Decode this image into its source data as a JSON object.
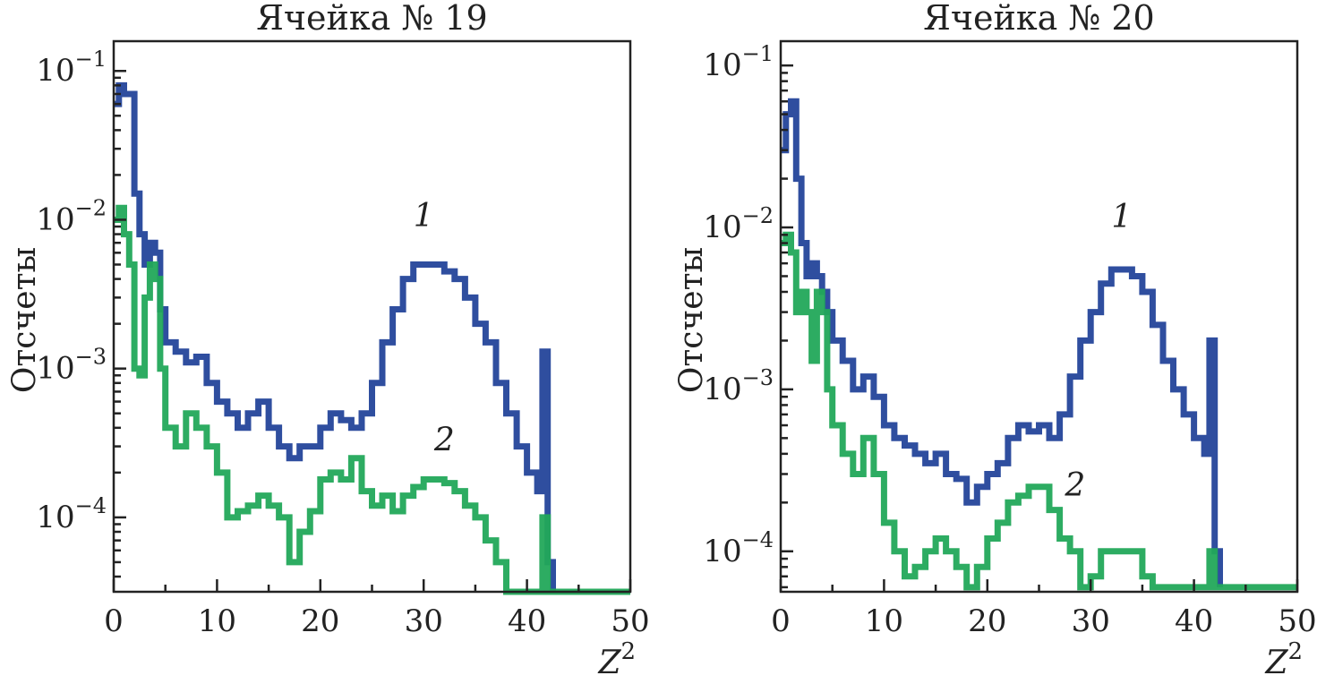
{
  "chart_data": [
    {
      "type": "line",
      "title": "Ячейка № 19",
      "xlabel_base": "Z",
      "xlabel_sup": "2",
      "ylabel": "Отсчеты",
      "xlim": [
        0,
        50
      ],
      "ylim_log10": [
        -4.5,
        -0.8
      ],
      "x_ticks": [
        "0",
        "10",
        "20",
        "30",
        "40",
        "50"
      ],
      "y_ticks": [
        {
          "base": "10",
          "exp": "−1",
          "log": -1
        },
        {
          "base": "10",
          "exp": "−2",
          "log": -2
        },
        {
          "base": "10",
          "exp": "−3",
          "log": -3
        },
        {
          "base": "10",
          "exp": "−4",
          "log": -4
        }
      ],
      "series": [
        {
          "name": "1",
          "color": "#24449a",
          "points": [
            [
              0,
              0.06
            ],
            [
              0.5,
              0.08
            ],
            [
              1,
              0.07
            ],
            [
              2,
              0.015
            ],
            [
              2.5,
              0.008
            ],
            [
              3,
              0.005
            ],
            [
              3.5,
              0.007
            ],
            [
              4,
              0.006
            ],
            [
              4.5,
              0.0025
            ],
            [
              5,
              0.0015
            ],
            [
              6,
              0.0013
            ],
            [
              7,
              0.0011
            ],
            [
              8,
              0.0012
            ],
            [
              9,
              0.0008
            ],
            [
              10,
              0.0006
            ],
            [
              11,
              0.0005
            ],
            [
              12,
              0.0004
            ],
            [
              13,
              0.0005
            ],
            [
              14,
              0.0006
            ],
            [
              15,
              0.0004
            ],
            [
              16,
              0.0003
            ],
            [
              17,
              0.00025
            ],
            [
              18,
              0.0003
            ],
            [
              19,
              0.0003
            ],
            [
              20,
              0.0004
            ],
            [
              21,
              0.0005
            ],
            [
              22,
              0.00045
            ],
            [
              23,
              0.0004
            ],
            [
              24,
              0.0005
            ],
            [
              25,
              0.0008
            ],
            [
              26,
              0.0015
            ],
            [
              27,
              0.0025
            ],
            [
              28,
              0.004
            ],
            [
              29,
              0.005
            ],
            [
              30,
              0.005
            ],
            [
              31,
              0.005
            ],
            [
              32,
              0.0045
            ],
            [
              33,
              0.004
            ],
            [
              34,
              0.003
            ],
            [
              35,
              0.002
            ],
            [
              36,
              0.0015
            ],
            [
              37,
              0.0008
            ],
            [
              38,
              0.0005
            ],
            [
              39,
              0.0003
            ],
            [
              40,
              0.0002
            ],
            [
              41,
              0.00015
            ],
            [
              41.5,
              0.0013
            ],
            [
              42,
              5e-05
            ],
            [
              42.5,
              3e-05
            ]
          ]
        },
        {
          "name": "2",
          "color": "#22a85a",
          "points": [
            [
              0,
              0.01
            ],
            [
              0.5,
              0.012
            ],
            [
              1,
              0.008
            ],
            [
              1.5,
              0.005
            ],
            [
              2,
              0.001
            ],
            [
              2.5,
              0.0009
            ],
            [
              3,
              0.003
            ],
            [
              3.5,
              0.005
            ],
            [
              4,
              0.004
            ],
            [
              4.5,
              0.001
            ],
            [
              5,
              0.0004
            ],
            [
              6,
              0.0003
            ],
            [
              7,
              0.0005
            ],
            [
              8,
              0.0004
            ],
            [
              9,
              0.0003
            ],
            [
              10,
              0.0002
            ],
            [
              11,
              0.0001
            ],
            [
              12,
              0.00011
            ],
            [
              13,
              0.00012
            ],
            [
              14,
              0.00014
            ],
            [
              15,
              0.00012
            ],
            [
              16,
              0.0001
            ],
            [
              17,
              5e-05
            ],
            [
              18,
              8e-05
            ],
            [
              19,
              0.00011
            ],
            [
              20,
              0.00018
            ],
            [
              21,
              0.0002
            ],
            [
              22,
              0.00018
            ],
            [
              23,
              0.00025
            ],
            [
              24,
              0.00015
            ],
            [
              25,
              0.00012
            ],
            [
              26,
              0.00014
            ],
            [
              27,
              0.00011
            ],
            [
              28,
              0.00014
            ],
            [
              29,
              0.00016
            ],
            [
              30,
              0.00018
            ],
            [
              31,
              0.00018
            ],
            [
              32,
              0.00017
            ],
            [
              33,
              0.00015
            ],
            [
              34,
              0.00012
            ],
            [
              35,
              0.0001
            ],
            [
              36,
              7e-05
            ],
            [
              37,
              5e-05
            ],
            [
              38,
              3e-05
            ],
            [
              41.5,
              0.0001
            ],
            [
              42,
              3e-05
            ],
            [
              50,
              3e-05
            ]
          ]
        }
      ],
      "annotations": [
        {
          "text": "1",
          "x": 30,
          "y": 0.009
        },
        {
          "text": "2",
          "x": 32,
          "y": 0.00028
        }
      ]
    },
    {
      "type": "line",
      "title": "Ячейка № 20",
      "xlabel_base": "Z",
      "xlabel_sup": "2",
      "ylabel": "Отсчеты",
      "xlim": [
        0,
        50
      ],
      "ylim_log10": [
        -4.25,
        -0.85
      ],
      "x_ticks": [
        "0",
        "10",
        "20",
        "30",
        "40",
        "50"
      ],
      "y_ticks": [
        {
          "base": "10",
          "exp": "−1",
          "log": -1
        },
        {
          "base": "10",
          "exp": "−2",
          "log": -2
        },
        {
          "base": "10",
          "exp": "−3",
          "log": -3
        },
        {
          "base": "10",
          "exp": "−4",
          "log": -4
        }
      ],
      "series": [
        {
          "name": "1",
          "color": "#24449a",
          "points": [
            [
              0,
              0.03
            ],
            [
              0.5,
              0.05
            ],
            [
              1,
              0.06
            ],
            [
              1.5,
              0.02
            ],
            [
              2,
              0.008
            ],
            [
              2.5,
              0.005
            ],
            [
              3,
              0.006
            ],
            [
              3.5,
              0.005
            ],
            [
              4,
              0.004
            ],
            [
              4.5,
              0.003
            ],
            [
              5,
              0.002
            ],
            [
              6,
              0.0015
            ],
            [
              7,
              0.001
            ],
            [
              8,
              0.0012
            ],
            [
              9,
              0.0009
            ],
            [
              10,
              0.0006
            ],
            [
              11,
              0.0005
            ],
            [
              12,
              0.00045
            ],
            [
              13,
              0.0004
            ],
            [
              14,
              0.00035
            ],
            [
              15,
              0.0004
            ],
            [
              16,
              0.0003
            ],
            [
              17,
              0.00028
            ],
            [
              18,
              0.0002
            ],
            [
              19,
              0.00025
            ],
            [
              20,
              0.0003
            ],
            [
              21,
              0.00035
            ],
            [
              22,
              0.0005
            ],
            [
              23,
              0.0006
            ],
            [
              24,
              0.00055
            ],
            [
              25,
              0.0006
            ],
            [
              26,
              0.0005
            ],
            [
              27,
              0.0007
            ],
            [
              28,
              0.0012
            ],
            [
              29,
              0.002
            ],
            [
              30,
              0.003
            ],
            [
              31,
              0.0045
            ],
            [
              32,
              0.0055
            ],
            [
              33,
              0.0055
            ],
            [
              34,
              0.005
            ],
            [
              35,
              0.004
            ],
            [
              36,
              0.0025
            ],
            [
              37,
              0.0015
            ],
            [
              38,
              0.001
            ],
            [
              39,
              0.0007
            ],
            [
              40,
              0.0005
            ],
            [
              41,
              0.0004
            ],
            [
              41.5,
              0.002
            ],
            [
              42,
              0.0001
            ],
            [
              42.5,
              6e-05
            ]
          ]
        },
        {
          "name": "2",
          "color": "#22a85a",
          "points": [
            [
              0,
              0.008
            ],
            [
              0.5,
              0.009
            ],
            [
              1,
              0.007
            ],
            [
              1.5,
              0.003
            ],
            [
              2,
              0.004
            ],
            [
              2.5,
              0.003
            ],
            [
              3,
              0.0015
            ],
            [
              3.5,
              0.004
            ],
            [
              4,
              0.003
            ],
            [
              4.5,
              0.001
            ],
            [
              5,
              0.0006
            ],
            [
              6,
              0.0004
            ],
            [
              7,
              0.0003
            ],
            [
              8,
              0.0005
            ],
            [
              9,
              0.0003
            ],
            [
              10,
              0.00015
            ],
            [
              11,
              0.0001
            ],
            [
              12,
              7e-05
            ],
            [
              13,
              8e-05
            ],
            [
              14,
              0.0001
            ],
            [
              15,
              0.00012
            ],
            [
              16,
              0.0001
            ],
            [
              17,
              8e-05
            ],
            [
              18,
              6e-05
            ],
            [
              19,
              8e-05
            ],
            [
              20,
              0.00012
            ],
            [
              21,
              0.00015
            ],
            [
              22,
              0.0002
            ],
            [
              23,
              0.00022
            ],
            [
              24,
              0.00025
            ],
            [
              25,
              0.00025
            ],
            [
              26,
              0.00018
            ],
            [
              27,
              0.00012
            ],
            [
              28,
              0.0001
            ],
            [
              29,
              6e-05
            ],
            [
              30,
              7e-05
            ],
            [
              31,
              0.0001
            ],
            [
              32,
              0.0001
            ],
            [
              33,
              0.0001
            ],
            [
              34,
              0.0001
            ],
            [
              35,
              7e-05
            ],
            [
              36,
              6e-05
            ],
            [
              41.5,
              0.0001
            ],
            [
              42,
              6e-05
            ],
            [
              50,
              6e-05
            ]
          ]
        }
      ],
      "annotations": [
        {
          "text": "1",
          "x": 33,
          "y": 0.01
        },
        {
          "text": "2",
          "x": 28.5,
          "y": 0.00022
        }
      ]
    }
  ]
}
